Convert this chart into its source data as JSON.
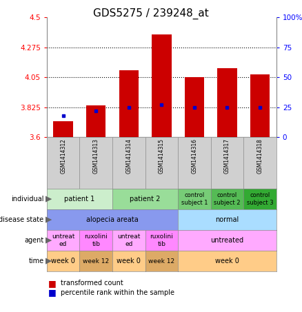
{
  "title": "GDS5275 / 239248_at",
  "samples": [
    "GSM1414312",
    "GSM1414313",
    "GSM1414314",
    "GSM1414315",
    "GSM1414316",
    "GSM1414317",
    "GSM1414318"
  ],
  "transformed_count": [
    3.72,
    3.84,
    4.1,
    4.37,
    4.05,
    4.12,
    4.07
  ],
  "percentile_rank_pct": [
    18,
    22,
    25,
    27,
    25,
    25,
    25
  ],
  "ylim_left": [
    3.6,
    4.5
  ],
  "ylim_right": [
    0,
    100
  ],
  "yticks_left": [
    3.6,
    3.825,
    4.05,
    4.275,
    4.5
  ],
  "yticks_right": [
    0,
    25,
    50,
    75,
    100
  ],
  "ytick_labels_left": [
    "3.6",
    "3.825",
    "4.05",
    "4.275",
    "4.5"
  ],
  "ytick_labels_right": [
    "0",
    "25",
    "50",
    "75",
    "100%"
  ],
  "bar_color": "#cc0000",
  "dot_color": "#0000cc",
  "sample_bg": "#d0d0d0",
  "ind_colors": [
    "#cceecc",
    "#cceecc",
    "#99dd99",
    "#99dd99",
    "#77cc77",
    "#55bb55",
    "#33aa33"
  ],
  "ind_texts": [
    "patient 1",
    "",
    "patient 2",
    "",
    "control\nsubject 1",
    "control\nsubject 2",
    "control\nsubject 3"
  ],
  "ind_groups": [
    {
      "text": "patient 1",
      "start": 0,
      "end": 1,
      "color": "#cceecc"
    },
    {
      "text": "patient 2",
      "start": 2,
      "end": 3,
      "color": "#99dd99"
    },
    {
      "text": "control\nsubject 1",
      "start": 4,
      "end": 4,
      "color": "#77cc77"
    },
    {
      "text": "control\nsubject 2",
      "start": 5,
      "end": 5,
      "color": "#55bb55"
    },
    {
      "text": "control\nsubject 3",
      "start": 6,
      "end": 6,
      "color": "#33aa33"
    }
  ],
  "dis_groups": [
    {
      "text": "alopecia areata",
      "start": 0,
      "end": 3,
      "color": "#8899ee"
    },
    {
      "text": "normal",
      "start": 4,
      "end": 6,
      "color": "#aaddff"
    }
  ],
  "agent_groups": [
    {
      "text": "untreat\ned",
      "start": 0,
      "end": 0,
      "color": "#ffaaff"
    },
    {
      "text": "ruxolini\ntib",
      "start": 1,
      "end": 1,
      "color": "#ff88ff"
    },
    {
      "text": "untreat\ned",
      "start": 2,
      "end": 2,
      "color": "#ffaaff"
    },
    {
      "text": "ruxolini\ntib",
      "start": 3,
      "end": 3,
      "color": "#ff88ff"
    },
    {
      "text": "untreated",
      "start": 4,
      "end": 6,
      "color": "#ffaaff"
    }
  ],
  "time_groups": [
    {
      "text": "week 0",
      "start": 0,
      "end": 0,
      "color": "#ffcc88"
    },
    {
      "text": "week 12",
      "start": 1,
      "end": 1,
      "color": "#ddaa66"
    },
    {
      "text": "week 0",
      "start": 2,
      "end": 2,
      "color": "#ffcc88"
    },
    {
      "text": "week 12",
      "start": 3,
      "end": 3,
      "color": "#ddaa66"
    },
    {
      "text": "week 0",
      "start": 4,
      "end": 6,
      "color": "#ffcc88"
    }
  ],
  "row_labels": [
    "individual",
    "disease state",
    "agent",
    "time"
  ],
  "fig_width": 4.38,
  "fig_height": 4.53,
  "dpi": 100
}
